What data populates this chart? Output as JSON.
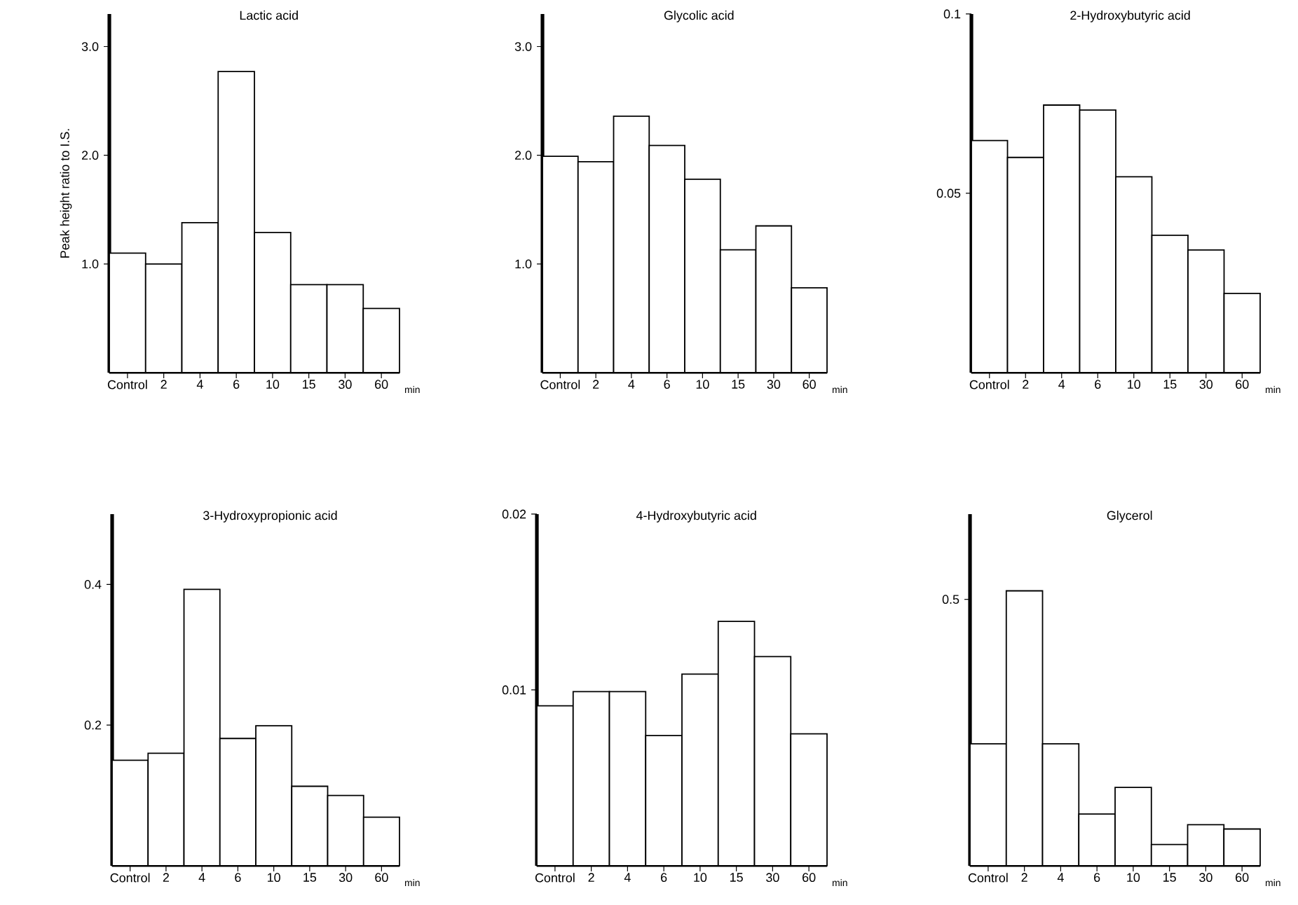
{
  "chart_data": [
    {
      "type": "bar",
      "title": "Lactic acid",
      "ylabel": "Peak height ratio to I.S.",
      "xlabel": "min",
      "categories": [
        "Control",
        "2",
        "4",
        "6",
        "10",
        "15",
        "30",
        "60"
      ],
      "values": [
        1.1,
        1.0,
        1.38,
        2.77,
        1.29,
        0.81,
        0.81,
        0.59
      ],
      "color": "#ffffff",
      "ylim": [
        0,
        3.3
      ],
      "yticks": [
        {
          "value": 1,
          "label": "1.0"
        },
        {
          "value": 2,
          "label": "2.0"
        },
        {
          "value": 3,
          "label": "3.0"
        }
      ]
    },
    {
      "type": "bar",
      "title": "Glycolic acid",
      "xlabel": "min",
      "categories": [
        "Control",
        "2",
        "4",
        "6",
        "10",
        "15",
        "30",
        "60"
      ],
      "values": [
        1.99,
        1.94,
        2.36,
        2.09,
        1.78,
        1.13,
        1.35,
        0.78
      ],
      "color": "#ffffff",
      "ylim": [
        0,
        3.3
      ],
      "yticks": [
        {
          "value": 1,
          "label": "1.0"
        },
        {
          "value": 2,
          "label": "2.0"
        },
        {
          "value": 3,
          "label": "3.0"
        }
      ]
    },
    {
      "type": "bar",
      "title": "2-Hydroxybutyric acid",
      "xlabel": "min",
      "categories": [
        "Control",
        "2",
        "4",
        "6",
        "10",
        "15",
        "30",
        "60"
      ],
      "values": [
        0.0647,
        0.06,
        0.0746,
        0.0732,
        0.0546,
        0.0383,
        0.0342,
        0.0221
      ],
      "color": "#ffffff",
      "ylim": [
        0,
        0.1
      ],
      "yticks": [
        0.05,
        0.1
      ]
    },
    {
      "type": "bar",
      "title": "3-Hydroxypropionic acid",
      "xlabel": "min",
      "categories": [
        "Control",
        "2",
        "4",
        "6",
        "10",
        "15",
        "30",
        "60"
      ],
      "values": [
        0.15,
        0.16,
        0.393,
        0.181,
        0.199,
        0.113,
        0.1,
        0.069
      ],
      "color": "#ffffff",
      "ylim": [
        0,
        0.5
      ],
      "yticks": [
        0.2,
        0.4
      ]
    },
    {
      "type": "bar",
      "title": "4-Hydroxybutyric acid",
      "xlabel": "min",
      "categories": [
        "Control",
        "2",
        "4",
        "6",
        "10",
        "15",
        "30",
        "60"
      ],
      "values": [
        0.0091,
        0.0099,
        0.0099,
        0.0074,
        0.0109,
        0.0139,
        0.0119,
        0.0075
      ],
      "color": "#ffffff",
      "ylim": [
        0,
        0.02
      ],
      "yticks": [
        0.01,
        0.02
      ]
    },
    {
      "type": "bar",
      "title": "Glycerol",
      "xlabel": "min",
      "categories": [
        "Control",
        "2",
        "4",
        "6",
        "10",
        "15",
        "30",
        "60"
      ],
      "values": [
        0.229,
        0.516,
        0.229,
        0.097,
        0.147,
        0.04,
        0.077,
        0.069
      ],
      "color": "#ffffff",
      "ylim": [
        0,
        0.66
      ],
      "yticks": [
        0.5
      ]
    }
  ]
}
